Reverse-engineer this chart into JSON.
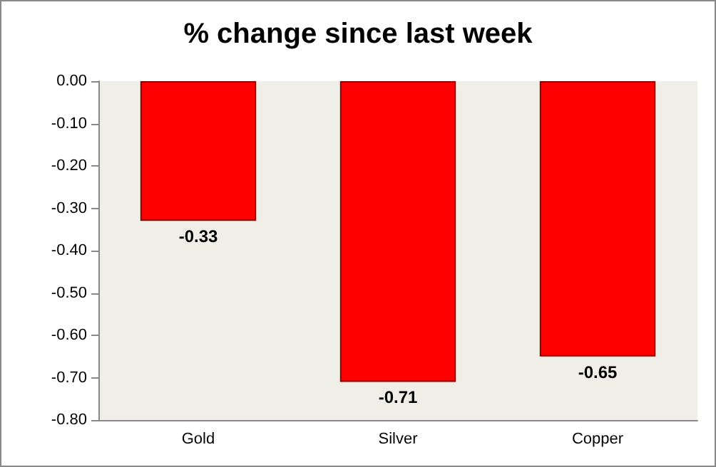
{
  "chart_data": {
    "type": "bar",
    "title": "% change since last week",
    "categories": [
      "Gold",
      "Silver",
      "Copper"
    ],
    "values": [
      -0.33,
      -0.71,
      -0.65
    ],
    "color": "#ff0000",
    "ylim": [
      -0.8,
      0
    ],
    "yticks": [
      {
        "value": 0,
        "label": "0.00"
      },
      {
        "value": -0.1,
        "label": "-0.10"
      },
      {
        "value": -0.2,
        "label": "-0.20"
      },
      {
        "value": -0.3,
        "label": "-0.30"
      },
      {
        "value": -0.4,
        "label": "-0.40"
      },
      {
        "value": -0.5,
        "label": "-0.50"
      },
      {
        "value": -0.6,
        "label": "-0.60"
      },
      {
        "value": -0.7,
        "label": "-0.70"
      },
      {
        "value": -0.8,
        "label": "-0.80"
      }
    ],
    "data_labels": true,
    "grid": false
  }
}
